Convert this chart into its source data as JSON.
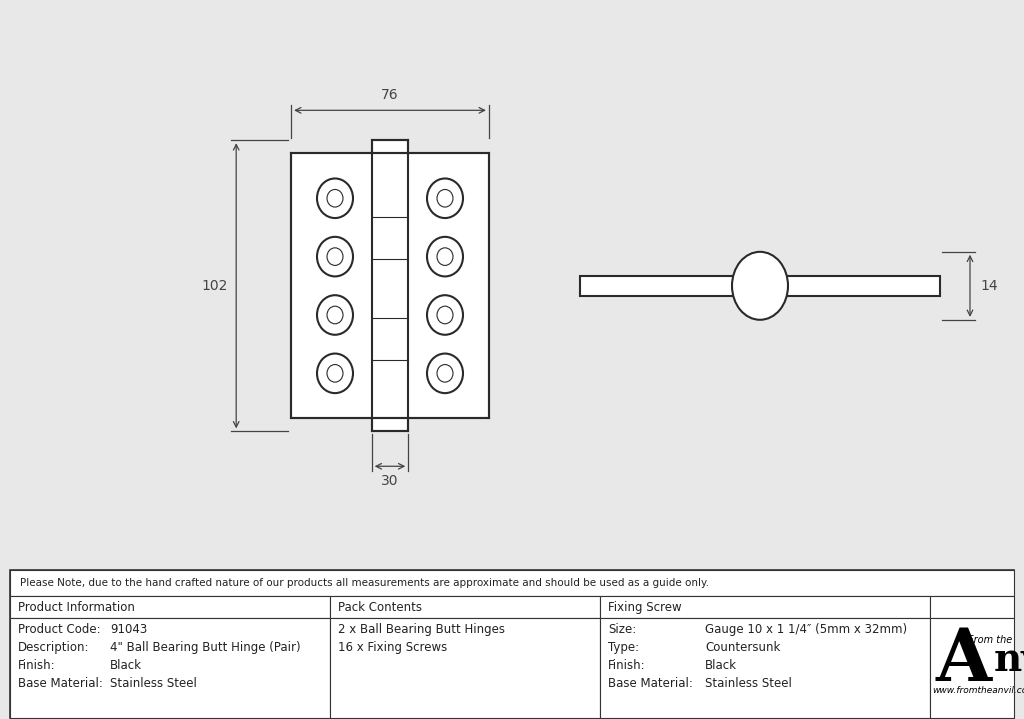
{
  "bg_color": "#e8e8e8",
  "drawing_bg": "#ffffff",
  "line_color": "#2a2a2a",
  "dim_color": "#444444",
  "note": "Please Note, due to the hand crafted nature of our products all measurements are approximate and should be used as a guide only.",
  "product_info_header": "Product Information",
  "product_info_rows": [
    [
      "Product Code:",
      "91043"
    ],
    [
      "Description:",
      "4\" Ball Bearing Butt Hinge (Pair)"
    ],
    [
      "Finish:",
      "Black"
    ],
    [
      "Base Material:",
      "Stainless Steel"
    ]
  ],
  "pack_contents_header": "Pack Contents",
  "pack_contents_rows": [
    "2 x Ball Bearing Butt Hinges",
    "16 x Fixing Screws"
  ],
  "fixing_screw_header": "Fixing Screw",
  "fixing_screw_rows": [
    [
      "Size:",
      "Gauge 10 x 1 1/4″ (5mm x 32mm)"
    ],
    [
      "Type:",
      "Countersunk"
    ],
    [
      "Finish:",
      "Black"
    ],
    [
      "Base Material:",
      "Stainless Steel"
    ]
  ],
  "dim_width": "76",
  "dim_height": "102",
  "dim_knuckle": "30",
  "dim_side": "14"
}
